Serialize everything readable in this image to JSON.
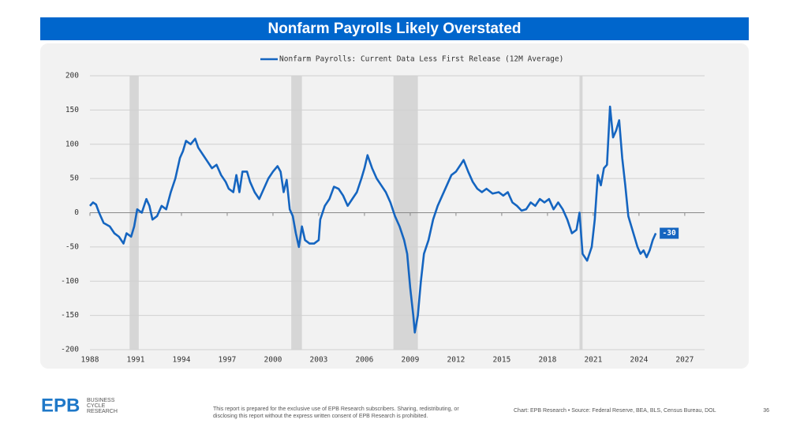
{
  "header": {
    "title": "Nonfarm Payrolls Likely Overstated"
  },
  "chart_data": {
    "type": "line",
    "series": [
      {
        "name": "Nonfarm Payrolls: Current Data Less First Release (12M Average)",
        "color": "#1565c0",
        "x": [
          1988.0,
          1988.2,
          1988.4,
          1988.6,
          1988.9,
          1989.3,
          1989.6,
          1989.9,
          1990.2,
          1990.4,
          1990.7,
          1990.9,
          1991.1,
          1991.4,
          1991.7,
          1991.9,
          1992.1,
          1992.4,
          1992.7,
          1993.0,
          1993.3,
          1993.6,
          1993.9,
          1994.1,
          1994.3,
          1994.6,
          1994.9,
          1995.1,
          1995.4,
          1995.7,
          1996.0,
          1996.3,
          1996.6,
          1996.9,
          1997.1,
          1997.4,
          1997.6,
          1997.8,
          1998.0,
          1998.3,
          1998.5,
          1998.8,
          1999.1,
          1999.4,
          1999.7,
          2000.0,
          2000.3,
          2000.5,
          2000.7,
          2000.9,
          2001.1,
          2001.3,
          2001.5,
          2001.7,
          2001.9,
          2002.1,
          2002.4,
          2002.7,
          2003.0,
          2003.1,
          2003.4,
          2003.7,
          2004.0,
          2004.3,
          2004.6,
          2004.9,
          2005.2,
          2005.5,
          2005.8,
          2006.0,
          2006.2,
          2006.5,
          2006.8,
          2007.1,
          2007.4,
          2007.7,
          2008.0,
          2008.3,
          2008.6,
          2008.8,
          2009.0,
          2009.2,
          2009.3,
          2009.5,
          2009.7,
          2009.9,
          2010.2,
          2010.5,
          2010.8,
          2011.1,
          2011.4,
          2011.7,
          2012.0,
          2012.3,
          2012.5,
          2012.8,
          2013.1,
          2013.4,
          2013.7,
          2014.0,
          2014.4,
          2014.8,
          2015.1,
          2015.4,
          2015.7,
          2016.0,
          2016.3,
          2016.6,
          2016.9,
          2017.2,
          2017.5,
          2017.8,
          2018.1,
          2018.4,
          2018.7,
          2019.0,
          2019.3,
          2019.6,
          2019.9,
          2020.1,
          2020.3,
          2020.6,
          2020.9,
          2021.1,
          2021.3,
          2021.5,
          2021.7,
          2021.9,
          2022.1,
          2022.3,
          2022.5,
          2022.7,
          2022.9,
          2023.1,
          2023.3,
          2023.5,
          2023.7,
          2023.9,
          2024.1,
          2024.3,
          2024.5,
          2024.7,
          2024.9,
          2025.1
        ],
        "values": [
          10,
          15,
          12,
          0,
          -15,
          -20,
          -30,
          -35,
          -45,
          -30,
          -35,
          -20,
          5,
          0,
          20,
          10,
          -10,
          -5,
          10,
          5,
          30,
          50,
          80,
          90,
          105,
          100,
          108,
          95,
          85,
          75,
          65,
          70,
          55,
          45,
          35,
          30,
          55,
          30,
          60,
          60,
          45,
          30,
          20,
          35,
          50,
          60,
          68,
          60,
          30,
          48,
          5,
          -5,
          -30,
          -50,
          -20,
          -40,
          -45,
          -45,
          -40,
          -10,
          10,
          20,
          38,
          35,
          25,
          10,
          20,
          30,
          50,
          65,
          84,
          65,
          50,
          40,
          30,
          15,
          -5,
          -20,
          -40,
          -60,
          -110,
          -150,
          -175,
          -150,
          -100,
          -60,
          -40,
          -10,
          10,
          25,
          40,
          55,
          60,
          70,
          77,
          60,
          45,
          35,
          30,
          35,
          28,
          30,
          25,
          30,
          15,
          10,
          3,
          5,
          15,
          10,
          20,
          15,
          20,
          5,
          15,
          5,
          -10,
          -30,
          -25,
          0,
          -60,
          -70,
          -50,
          -10,
          55,
          40,
          65,
          70,
          155,
          110,
          120,
          135,
          80,
          40,
          -5,
          -20,
          -35,
          -50,
          -60,
          -55,
          -65,
          -55,
          -40,
          -30
        ]
      }
    ],
    "end_label": -30,
    "recessions": [
      [
        1990.6,
        1991.2
      ],
      [
        2001.2,
        2001.9
      ],
      [
        2007.9,
        2009.5
      ],
      [
        2020.1,
        2020.3
      ]
    ],
    "xlim": [
      1988,
      2028.3
    ],
    "xticks": [
      1988,
      1991,
      1994,
      1997,
      2000,
      2003,
      2006,
      2009,
      2012,
      2015,
      2018,
      2021,
      2024,
      2027
    ],
    "ylim": [
      -200,
      200
    ],
    "yticks": [
      -200,
      -150,
      -100,
      -50,
      0,
      50,
      100,
      150,
      200
    ],
    "grid": true,
    "legend": "top"
  },
  "footer": {
    "logo": "EPB",
    "logo_lines": [
      "BUSINESS",
      "CYCLE",
      "RESEARCH"
    ],
    "disclaimer": [
      "This report is prepared for the exclusive use of EPB Research subscribers. Sharing, redistributing, or",
      "disclosing this report without the express written consent of EPB Research is prohibited."
    ],
    "source": "Chart: EPB Research  •  Source: Federal Reserve, BEA, BLS, Census Bureau, DOL",
    "page": "36"
  }
}
